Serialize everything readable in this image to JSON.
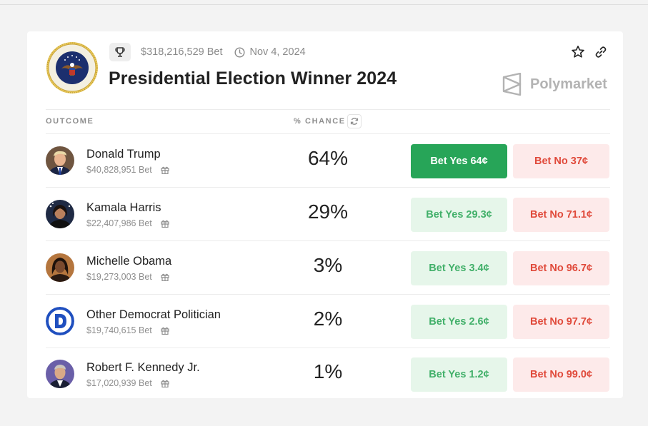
{
  "market": {
    "volume": "$318,216,529 Bet",
    "date": "Nov 4, 2024",
    "title": "Presidential Election Winner 2024",
    "brand": "Polymarket"
  },
  "table": {
    "col_outcome": "OUTCOME",
    "col_chance": "% CHANCE"
  },
  "outcomes": [
    {
      "name": "Donald Trump",
      "bet": "$40,828,951 Bet",
      "chance": "64%",
      "yes": "Bet Yes 64¢",
      "no": "Bet No 37¢",
      "avatar": "trump-avatar",
      "bg": "#7a5b46"
    },
    {
      "name": "Kamala Harris",
      "bet": "$22,407,986 Bet",
      "chance": "29%",
      "yes": "Bet Yes 29.3¢",
      "no": "Bet No 71.1¢",
      "avatar": "harris-avatar",
      "bg": "#1f2a44"
    },
    {
      "name": "Michelle Obama",
      "bet": "$19,273,003 Bet",
      "chance": "3%",
      "yes": "Bet Yes 3.4¢",
      "no": "Bet No 96.7¢",
      "avatar": "obama-avatar",
      "bg": "#b5763e"
    },
    {
      "name": "Other Democrat Politician",
      "bet": "$19,740,615 Bet",
      "chance": "2%",
      "yes": "Bet Yes 2.6¢",
      "no": "Bet No 97.7¢",
      "avatar": "democrat-logo",
      "bg": "#ffffff"
    },
    {
      "name": "Robert F. Kennedy Jr.",
      "bet": "$17,020,939 Bet",
      "chance": "1%",
      "yes": "Bet Yes 1.2¢",
      "no": "Bet No 99.0¢",
      "avatar": "kennedy-avatar",
      "bg": "#6a5fa8"
    }
  ],
  "colors": {
    "yes_primary": "#27a558",
    "yes_light": "#e6f6ea",
    "no_light": "#fdeaea",
    "no_text": "#e04a3b",
    "democrat_blue": "#1f4fbf"
  },
  "icons": {
    "trophy": "trophy-icon",
    "clock": "clock-icon",
    "star": "star-icon",
    "link": "link-icon",
    "refresh": "refresh-icon",
    "gift": "gift-icon",
    "brand": "polymarket-logo"
  }
}
